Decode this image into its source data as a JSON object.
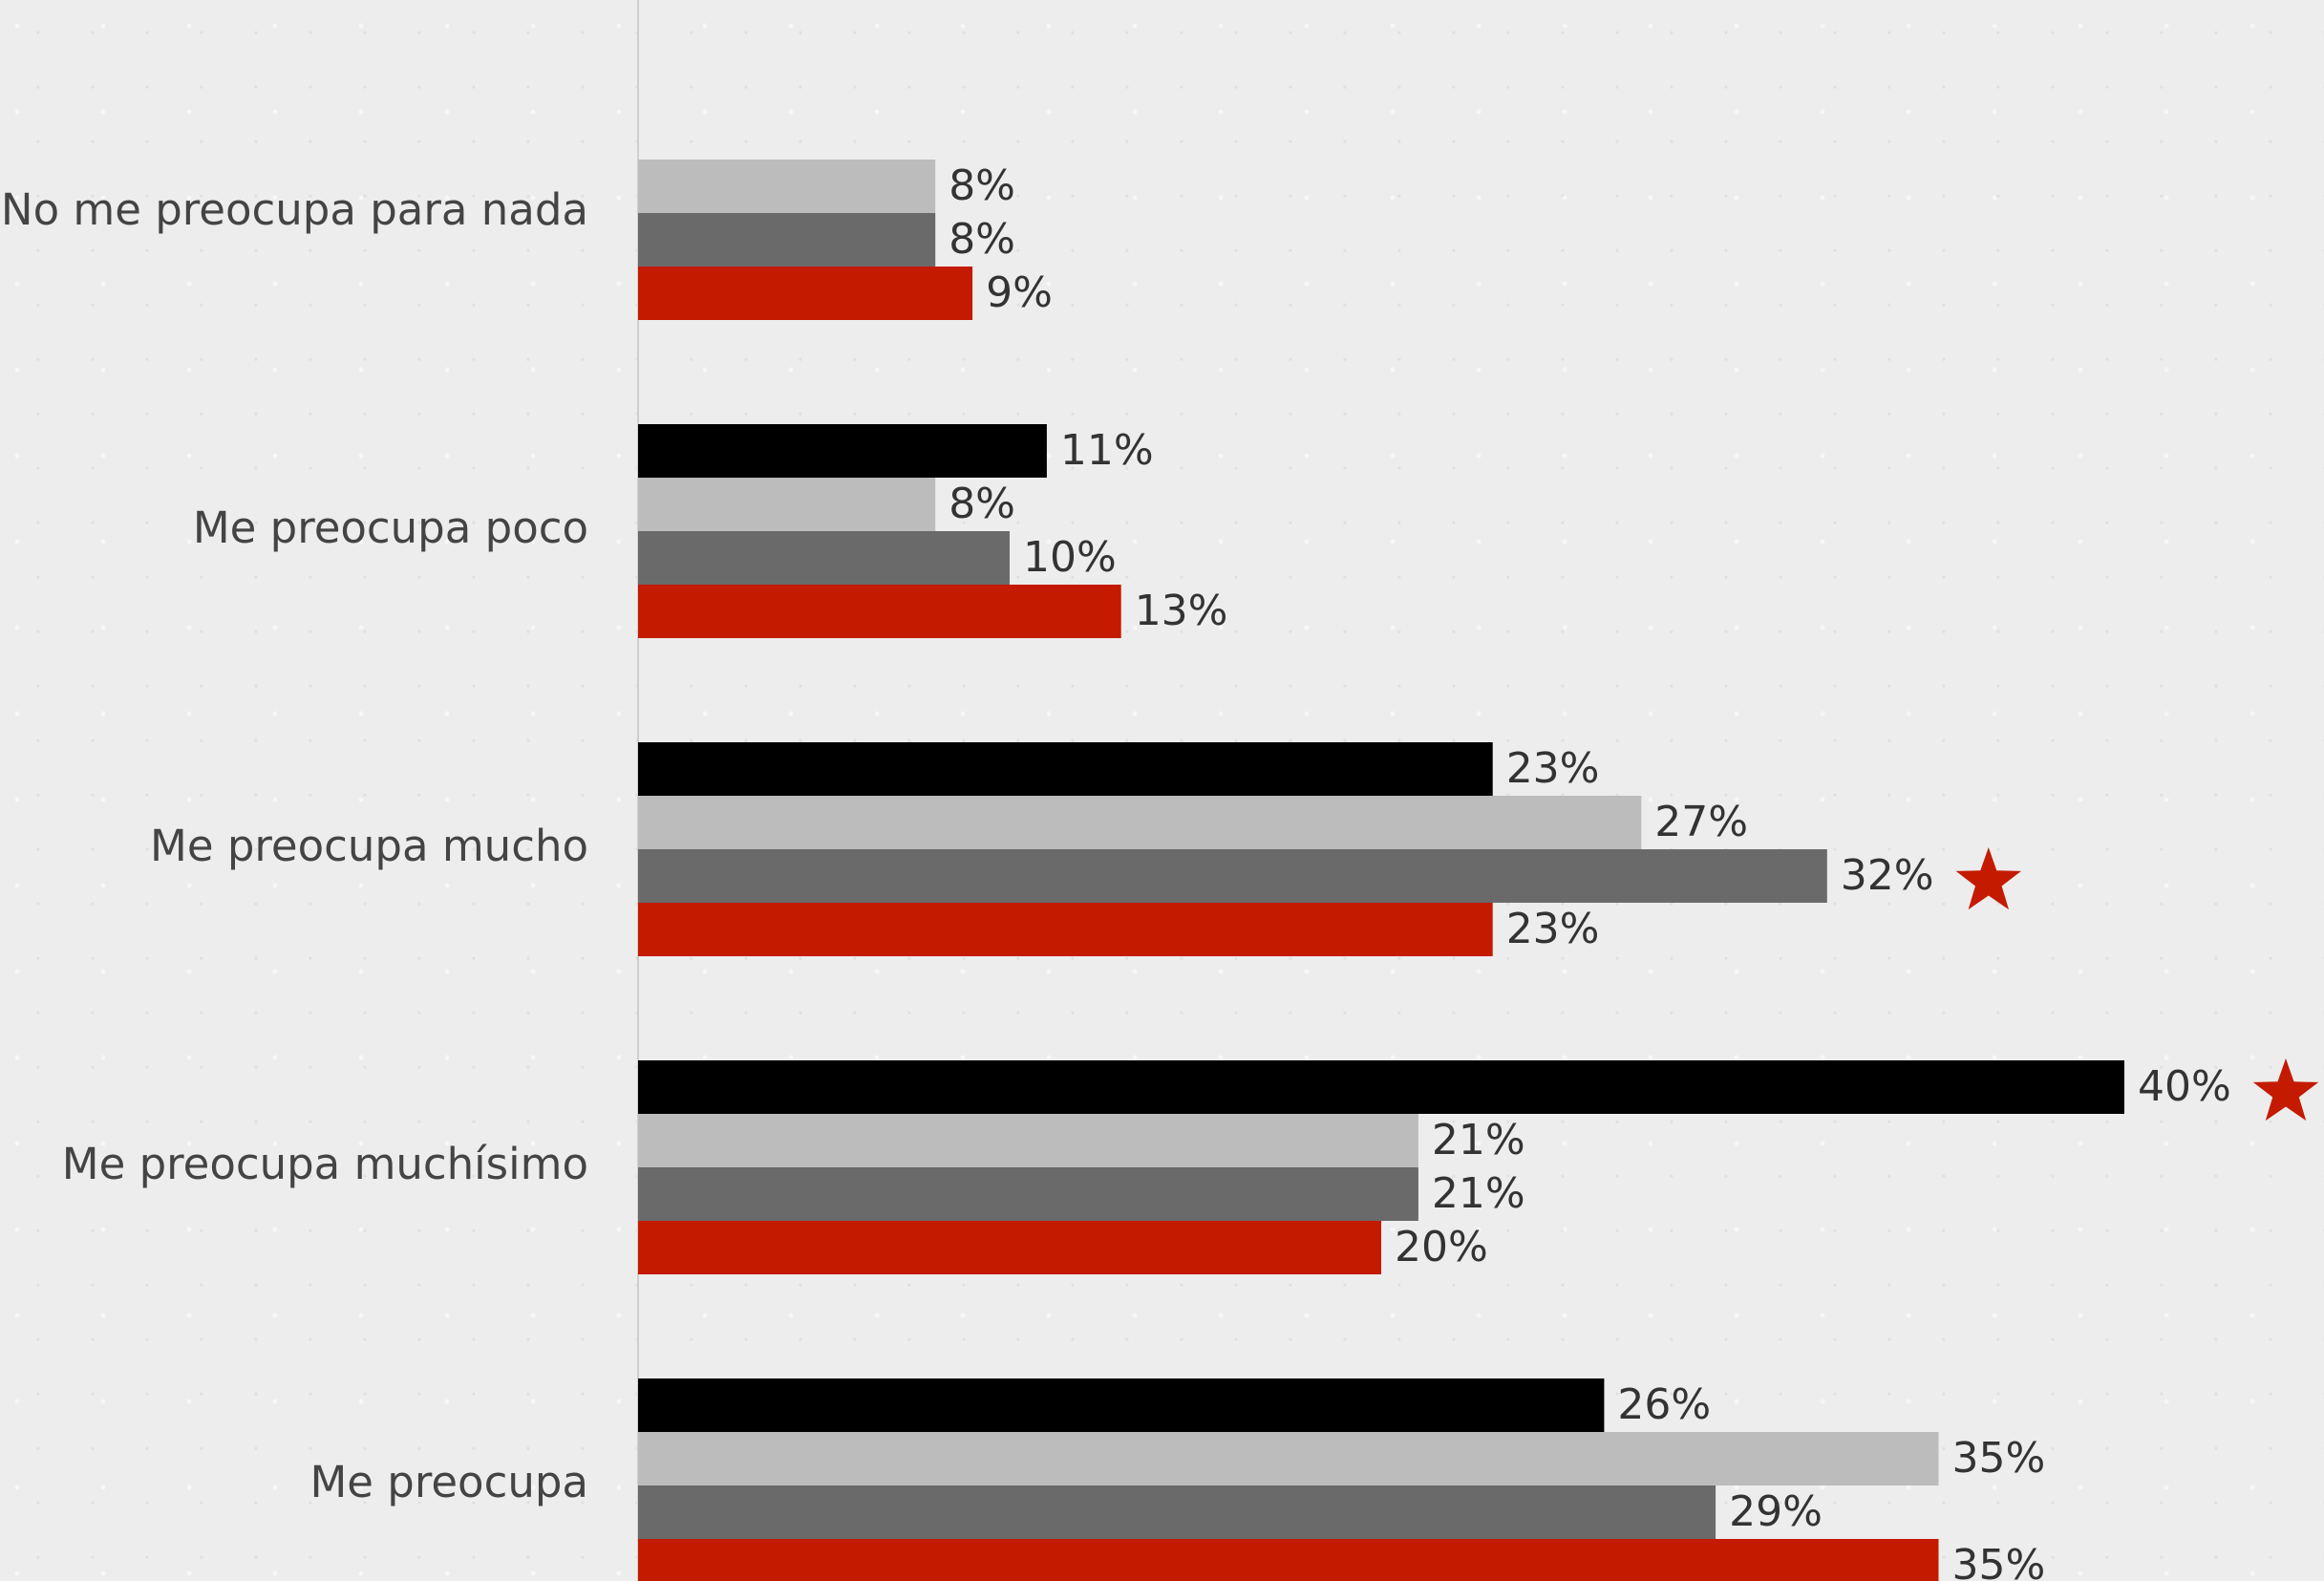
{
  "chart_data": {
    "type": "bar",
    "orientation": "horizontal",
    "categories": [
      "No me preocupa para nada",
      "Me preocupa poco",
      "Me preocupa mucho",
      "Me preocupa muchísimo",
      "Me preocupa"
    ],
    "series": [
      {
        "color": "#000000",
        "values": [
          null,
          11,
          23,
          40,
          26
        ]
      },
      {
        "color": "#bcbcbc",
        "values": [
          8,
          8,
          27,
          21,
          35
        ]
      },
      {
        "color": "#6a6a6a",
        "values": [
          8,
          10,
          32,
          21,
          29
        ]
      },
      {
        "color": "#c41a00",
        "values": [
          9,
          13,
          23,
          20,
          35
        ]
      }
    ],
    "value_suffix": "%",
    "xlim": [
      0,
      40
    ],
    "grid": false,
    "legend": "none",
    "highlights": [
      {
        "category": "Me preocupa mucho",
        "series_index": 2,
        "marker": "star-icon",
        "color": "#c41a00"
      },
      {
        "category": "Me preocupa muchísimo",
        "series_index": 0,
        "marker": "star-icon",
        "color": "#c41a00"
      }
    ]
  }
}
